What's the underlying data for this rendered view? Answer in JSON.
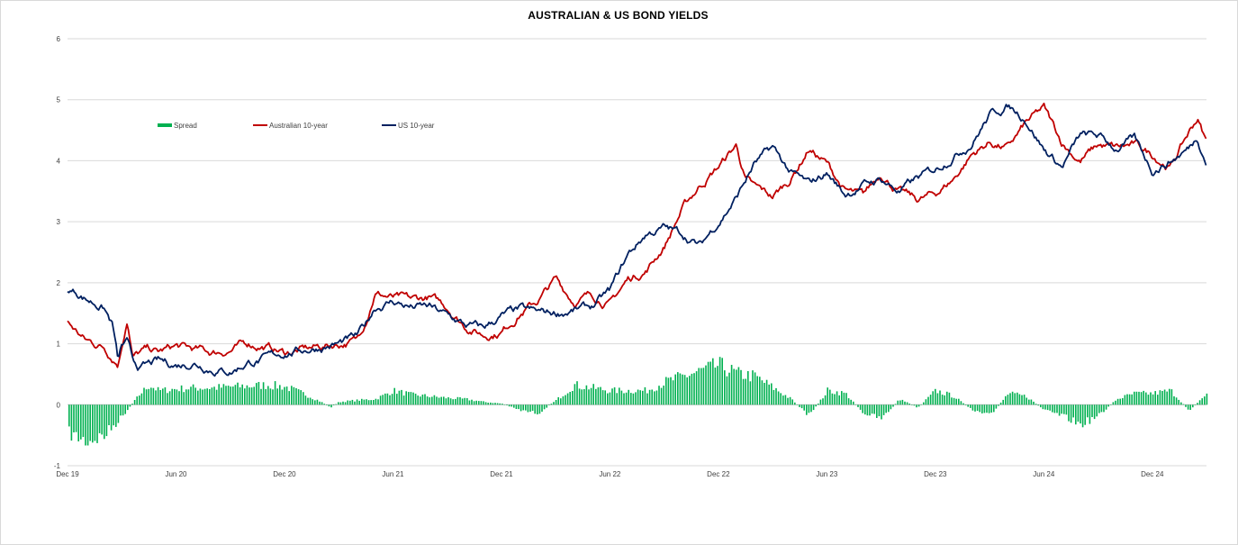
{
  "chart_data": {
    "type": "line",
    "title": "AUSTRALIAN & US BOND YIELDS",
    "xlabel": "",
    "ylabel": "",
    "ylim": [
      -1,
      6
    ],
    "y_ticks": [
      -1,
      0,
      1,
      2,
      3,
      4,
      5,
      6
    ],
    "x_ticks": [
      "Dec 19",
      "Jun 20",
      "Dec 20",
      "Jun 21",
      "Dec 21",
      "Jun 22",
      "Dec 22",
      "Jun 23",
      "Dec 23",
      "Jun 24",
      "Dec 24"
    ],
    "x_range_months": [
      0,
      63
    ],
    "grid": true,
    "legend_position": "top-left",
    "colors": {
      "spread": "#00b050",
      "australia": "#c00000",
      "us": "#002060"
    },
    "series": [
      {
        "name": "Spread",
        "kind": "bar",
        "color": "#00b050",
        "x": [
          0,
          1,
          2,
          3,
          4,
          4.5,
          5,
          6,
          7,
          8,
          9,
          10,
          11,
          12,
          13,
          14,
          14.5,
          15,
          16,
          17,
          18,
          19,
          20,
          21,
          22,
          23,
          24,
          25,
          26,
          27,
          28,
          29,
          30,
          31,
          32,
          33,
          34,
          35,
          36,
          37,
          38,
          39,
          40,
          41,
          42,
          43,
          44,
          45,
          46,
          47,
          48,
          49,
          50,
          51,
          52,
          53,
          54,
          55,
          56,
          57,
          58,
          59,
          60,
          61,
          62,
          63
        ],
        "values": [
          -0.5,
          -0.65,
          -0.55,
          -0.2,
          0.2,
          0.35,
          0.25,
          0.28,
          0.3,
          0.3,
          0.32,
          0.33,
          0.35,
          0.32,
          0.2,
          0.05,
          -0.05,
          0.05,
          0.08,
          0.1,
          0.25,
          0.18,
          0.15,
          0.12,
          0.1,
          0.05,
          0.02,
          -0.1,
          -0.15,
          0.08,
          0.35,
          0.3,
          0.25,
          0.25,
          0.25,
          0.4,
          0.5,
          0.6,
          0.7,
          0.55,
          0.5,
          0.3,
          0.1,
          -0.2,
          0.25,
          0.2,
          -0.15,
          -0.25,
          0.1,
          -0.05,
          0.25,
          0.15,
          -0.1,
          -0.2,
          0.2,
          0.15,
          -0.1,
          -0.2,
          -0.35,
          -0.2,
          0.1,
          0.2,
          0.2,
          0.25,
          -0.1,
          0.2
        ]
      },
      {
        "name": "Australian 10-year",
        "kind": "line",
        "color": "#c00000",
        "x": [
          0,
          0.5,
          1,
          2,
          2.8,
          3,
          3.3,
          3.6,
          4,
          4.5,
          5,
          6,
          7,
          8,
          9,
          10,
          11,
          12,
          13,
          14,
          15,
          16,
          16.5,
          17,
          18,
          19,
          20,
          21,
          22,
          23,
          24,
          25,
          26,
          27,
          28,
          29,
          30,
          31,
          32,
          33,
          34,
          35,
          36,
          37,
          37.5,
          38,
          39,
          40,
          41,
          42,
          43,
          44,
          45,
          46,
          47,
          48,
          49,
          50,
          51,
          52,
          53,
          54,
          55,
          56,
          57,
          58,
          59,
          60,
          61,
          62,
          62.5,
          63
        ],
        "values": [
          1.35,
          1.2,
          1.05,
          0.95,
          0.7,
          1.0,
          1.45,
          0.8,
          0.85,
          0.9,
          0.85,
          0.95,
          0.9,
          0.85,
          0.9,
          1.0,
          0.95,
          0.85,
          0.9,
          0.95,
          1.0,
          1.05,
          1.4,
          1.85,
          1.75,
          1.7,
          1.75,
          1.6,
          1.3,
          1.15,
          1.2,
          1.5,
          1.7,
          2.05,
          1.7,
          1.8,
          1.65,
          2.05,
          2.2,
          2.6,
          3.2,
          3.6,
          3.9,
          4.25,
          3.7,
          3.55,
          3.4,
          3.7,
          4.2,
          3.95,
          3.5,
          3.4,
          3.8,
          3.5,
          3.35,
          3.45,
          3.7,
          4.1,
          4.3,
          4.2,
          4.6,
          4.85,
          4.3,
          4.0,
          4.25,
          4.2,
          4.25,
          4.1,
          3.9,
          4.45,
          4.7,
          4.3
        ]
      },
      {
        "name": "US 10-year",
        "kind": "line",
        "color": "#002060",
        "x": [
          0,
          0.5,
          1,
          2,
          2.5,
          2.8,
          3,
          3.3,
          3.6,
          4,
          4.5,
          5,
          6,
          7,
          8,
          9,
          10,
          11,
          12,
          13,
          14,
          15,
          16,
          16.5,
          17,
          18,
          19,
          20,
          21,
          22,
          23,
          24,
          25,
          26,
          27,
          28,
          29,
          30,
          31,
          32,
          33,
          34,
          35,
          36,
          37,
          38,
          39,
          40,
          41,
          42,
          43,
          44,
          45,
          46,
          47,
          48,
          49,
          50,
          51,
          52,
          53,
          54,
          55,
          56,
          57,
          58,
          59,
          60,
          61,
          62,
          62.5,
          63
        ],
        "values": [
          1.9,
          1.85,
          1.75,
          1.6,
          1.3,
          0.7,
          0.95,
          1.0,
          0.7,
          0.6,
          0.65,
          0.7,
          0.65,
          0.7,
          0.6,
          0.55,
          0.7,
          0.75,
          0.85,
          0.9,
          0.95,
          1.0,
          1.1,
          1.3,
          1.6,
          1.7,
          1.6,
          1.6,
          1.45,
          1.3,
          1.25,
          1.45,
          1.55,
          1.5,
          1.5,
          1.55,
          1.6,
          1.85,
          2.45,
          2.8,
          2.9,
          2.8,
          2.6,
          3.0,
          3.4,
          3.95,
          4.2,
          3.8,
          3.6,
          3.8,
          3.45,
          3.6,
          3.7,
          3.5,
          3.7,
          3.85,
          4.1,
          4.3,
          4.75,
          4.9,
          4.7,
          4.2,
          3.9,
          4.4,
          4.4,
          4.2,
          4.35,
          3.85,
          4.0,
          4.2,
          4.4,
          4.0
        ]
      }
    ]
  }
}
